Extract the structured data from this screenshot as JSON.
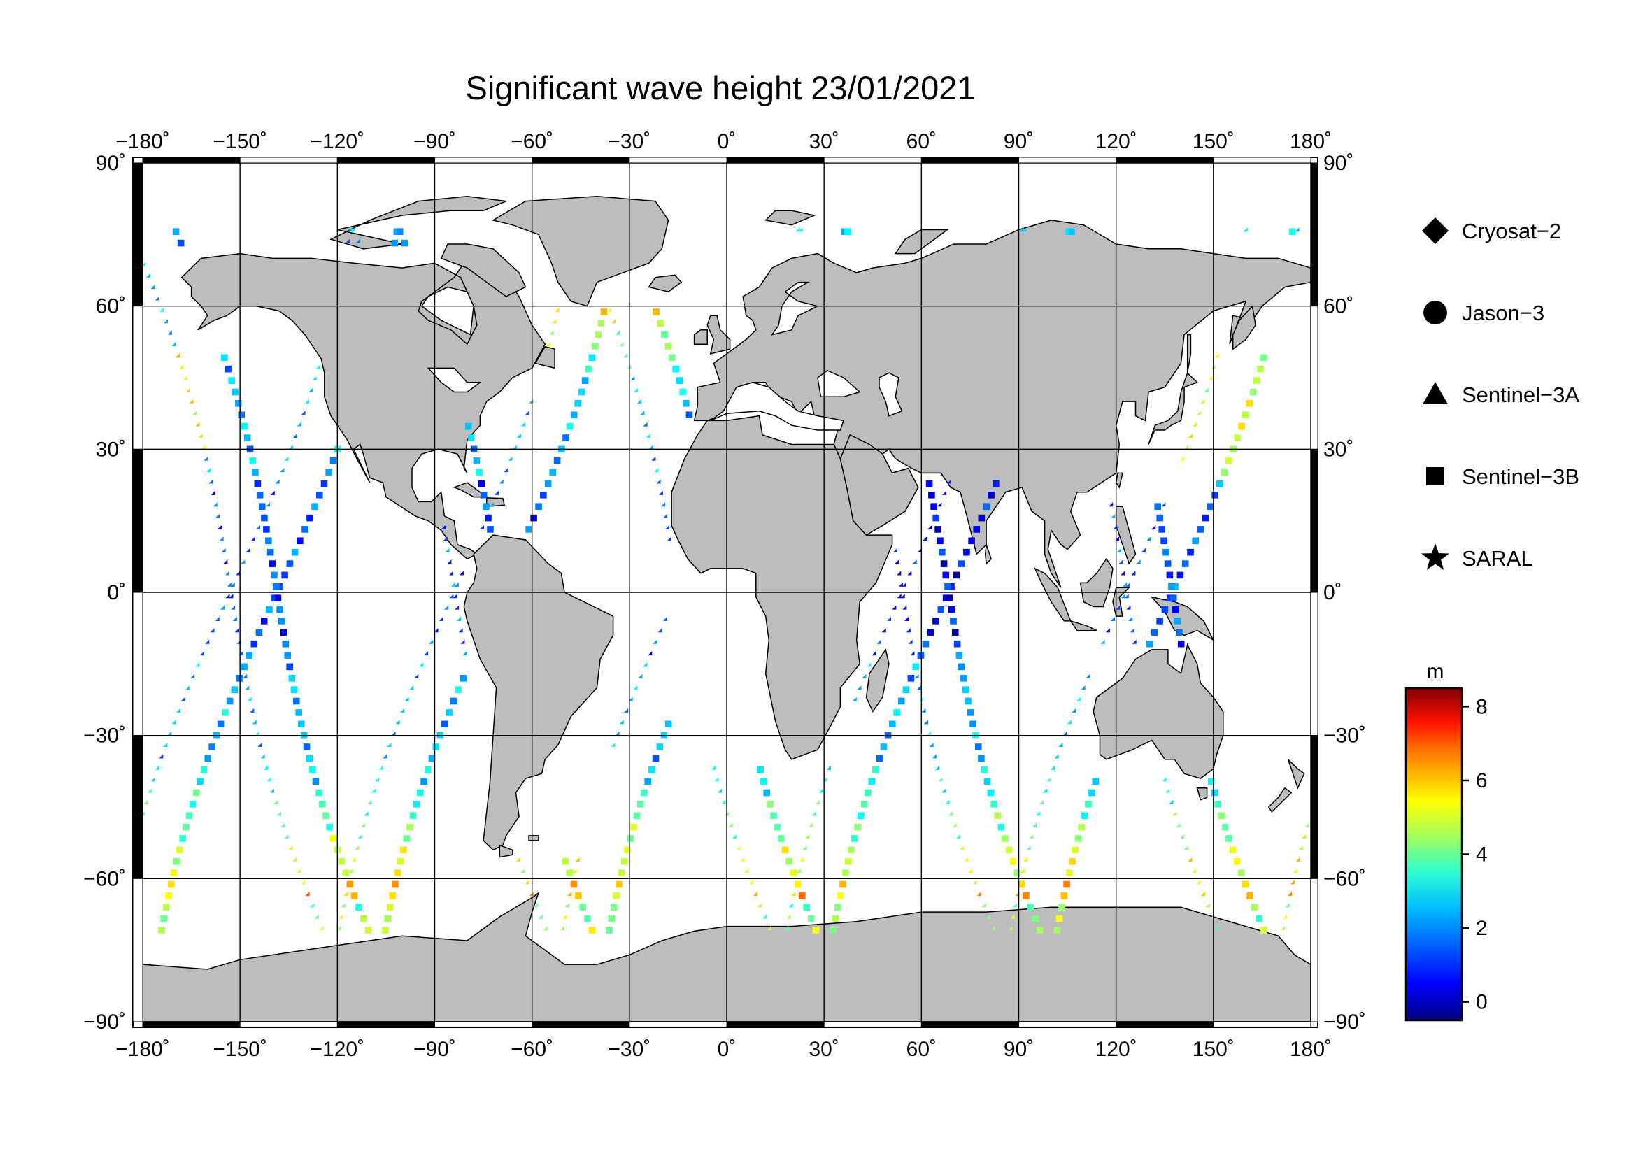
{
  "title": "Significant wave height 23/01/2021",
  "map": {
    "projection": "equirectangular",
    "lon_range": [
      -180,
      180
    ],
    "lat_range": [
      -90,
      90
    ],
    "lon_ticks": [
      "−180˚",
      "−150˚",
      "−120˚",
      "−90˚",
      "−60˚",
      "−30˚",
      "0˚",
      "30˚",
      "60˚",
      "90˚",
      "120˚",
      "150˚",
      "180˚"
    ],
    "lat_ticks_left": [
      "90˚",
      "60˚",
      "30˚",
      "0˚",
      "−30˚",
      "−60˚",
      "−90˚"
    ],
    "lat_ticks_right": [
      "90˚",
      "60˚",
      "30˚",
      "0˚",
      "−30˚",
      "−60˚",
      "−90˚"
    ],
    "land_color": "#bdbdbd",
    "ocean_color": "#ffffff",
    "grid_color": "#000000"
  },
  "legend": {
    "items": [
      {
        "label": "Cryosat−2",
        "symbol": "diamond"
      },
      {
        "label": "Jason−3",
        "symbol": "circle"
      },
      {
        "label": "Sentinel−3A",
        "symbol": "triangle"
      },
      {
        "label": "Sentinel−3B",
        "symbol": "square"
      },
      {
        "label": "SARAL",
        "symbol": "star"
      }
    ]
  },
  "colorbar": {
    "unit": "m",
    "min": -0.5,
    "max": 8.5,
    "ticks": [
      "8",
      "6",
      "4",
      "2",
      "0"
    ],
    "tick_values": [
      8,
      6,
      4,
      2,
      0
    ],
    "colormap": "jet"
  }
}
